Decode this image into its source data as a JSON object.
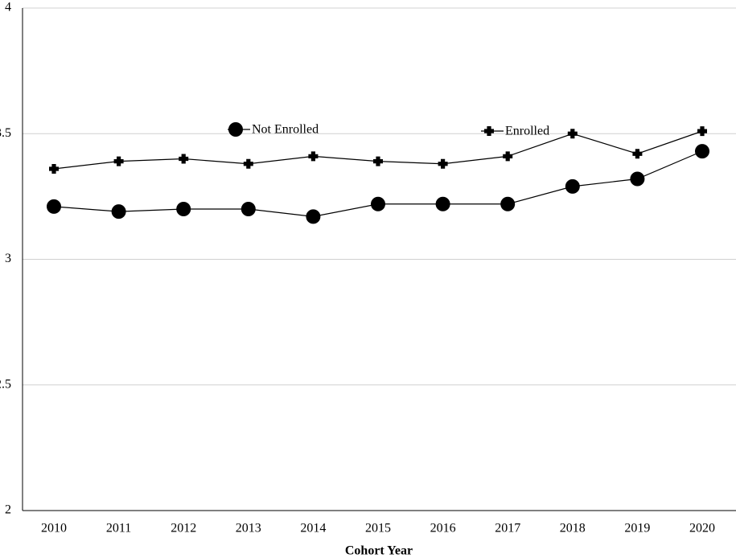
{
  "chart_data": {
    "type": "line",
    "x_label": "Cohort Year",
    "categories": [
      "2010",
      "2011",
      "2012",
      "2013",
      "2014",
      "2015",
      "2016",
      "2017",
      "2018",
      "2019",
      "2020"
    ],
    "series": [
      {
        "name": "Not Enrolled",
        "color": "#000000",
        "marker": "circle",
        "values": [
          3.21,
          3.19,
          3.2,
          3.2,
          3.17,
          3.22,
          3.22,
          3.22,
          3.29,
          3.32,
          3.43
        ]
      },
      {
        "name": "Enrolled",
        "color": "#000000",
        "marker": "plus",
        "values": [
          3.36,
          3.39,
          3.4,
          3.38,
          3.41,
          3.39,
          3.38,
          3.41,
          3.5,
          3.42,
          3.51
        ]
      }
    ],
    "ylim": [
      2,
      4
    ],
    "yticks": [
      2,
      2.5,
      3,
      3.5,
      4
    ],
    "grid": true
  }
}
